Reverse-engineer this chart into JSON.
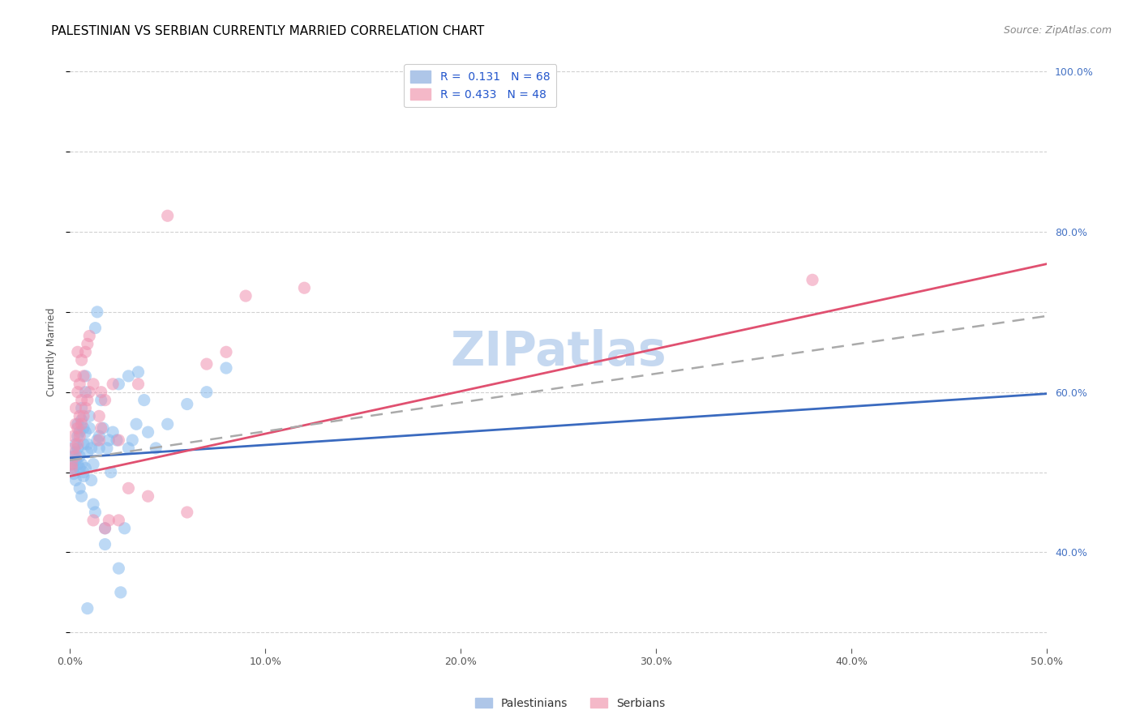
{
  "title": "PALESTINIAN VS SERBIAN CURRENTLY MARRIED CORRELATION CHART",
  "source": "Source: ZipAtlas.com",
  "ylabel": "Currently Married",
  "x_range": [
    0.0,
    50.0
  ],
  "y_range": [
    28.0,
    102.0
  ],
  "watermark": "ZIPatlas",
  "legend_label_palestinians": "Palestinians",
  "legend_label_serbians": "Serbians",
  "pal_color": "#88bbee",
  "ser_color": "#f090b0",
  "pal_scatter": [
    [
      0.1,
      51.0
    ],
    [
      0.2,
      50.5
    ],
    [
      0.2,
      49.8
    ],
    [
      0.2,
      52.0
    ],
    [
      0.3,
      51.5
    ],
    [
      0.3,
      49.0
    ],
    [
      0.3,
      52.5
    ],
    [
      0.3,
      53.5
    ],
    [
      0.4,
      53.0
    ],
    [
      0.4,
      51.0
    ],
    [
      0.4,
      54.5
    ],
    [
      0.4,
      56.0
    ],
    [
      0.5,
      50.5
    ],
    [
      0.5,
      52.0
    ],
    [
      0.5,
      55.0
    ],
    [
      0.5,
      48.0
    ],
    [
      0.6,
      47.0
    ],
    [
      0.6,
      51.0
    ],
    [
      0.6,
      56.5
    ],
    [
      0.6,
      58.0
    ],
    [
      0.7,
      49.5
    ],
    [
      0.7,
      50.0
    ],
    [
      0.7,
      53.5
    ],
    [
      0.7,
      55.5
    ],
    [
      0.8,
      50.5
    ],
    [
      0.8,
      55.0
    ],
    [
      0.8,
      60.0
    ],
    [
      0.8,
      62.0
    ],
    [
      0.9,
      52.5
    ],
    [
      0.9,
      53.5
    ],
    [
      1.0,
      55.5
    ],
    [
      1.0,
      57.0
    ],
    [
      1.1,
      53.0
    ],
    [
      1.1,
      49.0
    ],
    [
      1.2,
      51.0
    ],
    [
      1.2,
      46.0
    ],
    [
      1.3,
      45.0
    ],
    [
      1.4,
      54.0
    ],
    [
      1.5,
      53.0
    ],
    [
      1.5,
      54.5
    ],
    [
      1.6,
      59.0
    ],
    [
      1.7,
      55.5
    ],
    [
      1.8,
      41.0
    ],
    [
      1.8,
      43.0
    ],
    [
      1.9,
      53.0
    ],
    [
      2.0,
      54.0
    ],
    [
      2.1,
      50.0
    ],
    [
      2.2,
      55.0
    ],
    [
      2.4,
      54.0
    ],
    [
      2.5,
      38.0
    ],
    [
      2.6,
      35.0
    ],
    [
      2.8,
      43.0
    ],
    [
      3.0,
      53.0
    ],
    [
      3.2,
      54.0
    ],
    [
      3.4,
      56.0
    ],
    [
      3.8,
      59.0
    ],
    [
      4.0,
      55.0
    ],
    [
      4.4,
      53.0
    ],
    [
      5.0,
      56.0
    ],
    [
      6.0,
      58.5
    ],
    [
      7.0,
      60.0
    ],
    [
      1.3,
      68.0
    ],
    [
      1.4,
      70.0
    ],
    [
      2.5,
      61.0
    ],
    [
      3.0,
      62.0
    ],
    [
      3.5,
      62.5
    ],
    [
      8.0,
      63.0
    ],
    [
      0.9,
      33.0
    ]
  ],
  "ser_scatter": [
    [
      0.1,
      51.0
    ],
    [
      0.1,
      50.5
    ],
    [
      0.2,
      53.0
    ],
    [
      0.2,
      54.5
    ],
    [
      0.3,
      52.0
    ],
    [
      0.3,
      56.0
    ],
    [
      0.3,
      58.0
    ],
    [
      0.3,
      62.0
    ],
    [
      0.4,
      53.5
    ],
    [
      0.4,
      55.5
    ],
    [
      0.4,
      60.0
    ],
    [
      0.4,
      65.0
    ],
    [
      0.5,
      54.5
    ],
    [
      0.5,
      57.0
    ],
    [
      0.5,
      61.0
    ],
    [
      0.6,
      56.0
    ],
    [
      0.6,
      59.0
    ],
    [
      0.6,
      64.0
    ],
    [
      0.7,
      57.0
    ],
    [
      0.7,
      62.0
    ],
    [
      0.8,
      58.0
    ],
    [
      0.8,
      65.0
    ],
    [
      0.9,
      59.0
    ],
    [
      0.9,
      66.0
    ],
    [
      1.0,
      60.0
    ],
    [
      1.0,
      67.0
    ],
    [
      1.2,
      61.0
    ],
    [
      1.2,
      44.0
    ],
    [
      1.5,
      54.0
    ],
    [
      1.5,
      57.0
    ],
    [
      1.6,
      55.5
    ],
    [
      1.6,
      60.0
    ],
    [
      1.8,
      43.0
    ],
    [
      1.8,
      59.0
    ],
    [
      2.0,
      44.0
    ],
    [
      2.2,
      61.0
    ],
    [
      2.5,
      54.0
    ],
    [
      2.5,
      44.0
    ],
    [
      3.0,
      48.0
    ],
    [
      3.5,
      61.0
    ],
    [
      4.0,
      47.0
    ],
    [
      6.0,
      45.0
    ],
    [
      7.0,
      63.5
    ],
    [
      8.0,
      65.0
    ],
    [
      9.0,
      72.0
    ],
    [
      12.0,
      73.0
    ],
    [
      5.0,
      82.0
    ],
    [
      38.0,
      74.0
    ]
  ],
  "pal_line": [
    [
      0.0,
      51.8
    ],
    [
      50.0,
      59.8
    ]
  ],
  "ser_line": [
    [
      0.0,
      49.5
    ],
    [
      50.0,
      76.0
    ]
  ],
  "dashed_line": [
    [
      0.0,
      51.5
    ],
    [
      50.0,
      69.5
    ]
  ],
  "title_fontsize": 11,
  "source_fontsize": 9,
  "axis_fontsize": 9,
  "legend_fontsize": 10,
  "watermark_fontsize": 42,
  "watermark_color": "#c5d8f0",
  "background_color": "#ffffff",
  "grid_color": "#cccccc"
}
